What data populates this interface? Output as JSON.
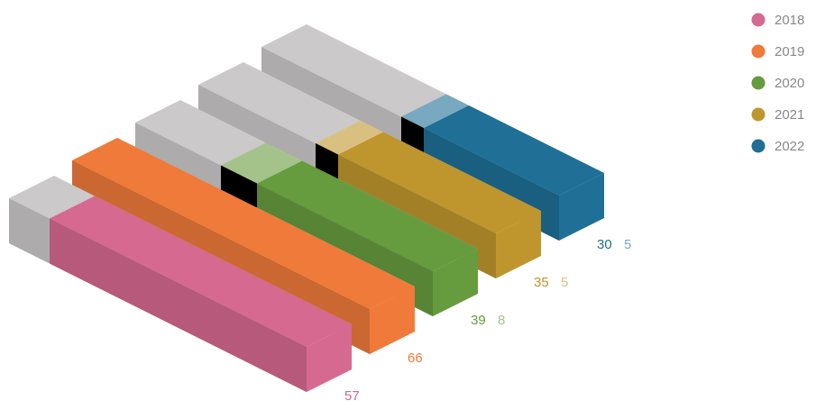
{
  "chart_data": {
    "type": "bar3d",
    "xlim": [
      0,
      66
    ],
    "track_color": "#cbc9c9",
    "series": [
      {
        "name": "2018",
        "color": "#d6698f",
        "values": [
          57
        ]
      },
      {
        "name": "2019",
        "color": "#ef7a3a",
        "values": [
          66
        ]
      },
      {
        "name": "2020",
        "color": "#669b3e",
        "values": [
          39,
          8
        ]
      },
      {
        "name": "2021",
        "color": "#bf962d",
        "values": [
          35,
          5
        ]
      },
      {
        "name": "2022",
        "color": "#1f6f96",
        "values": [
          30,
          5
        ]
      }
    ]
  }
}
